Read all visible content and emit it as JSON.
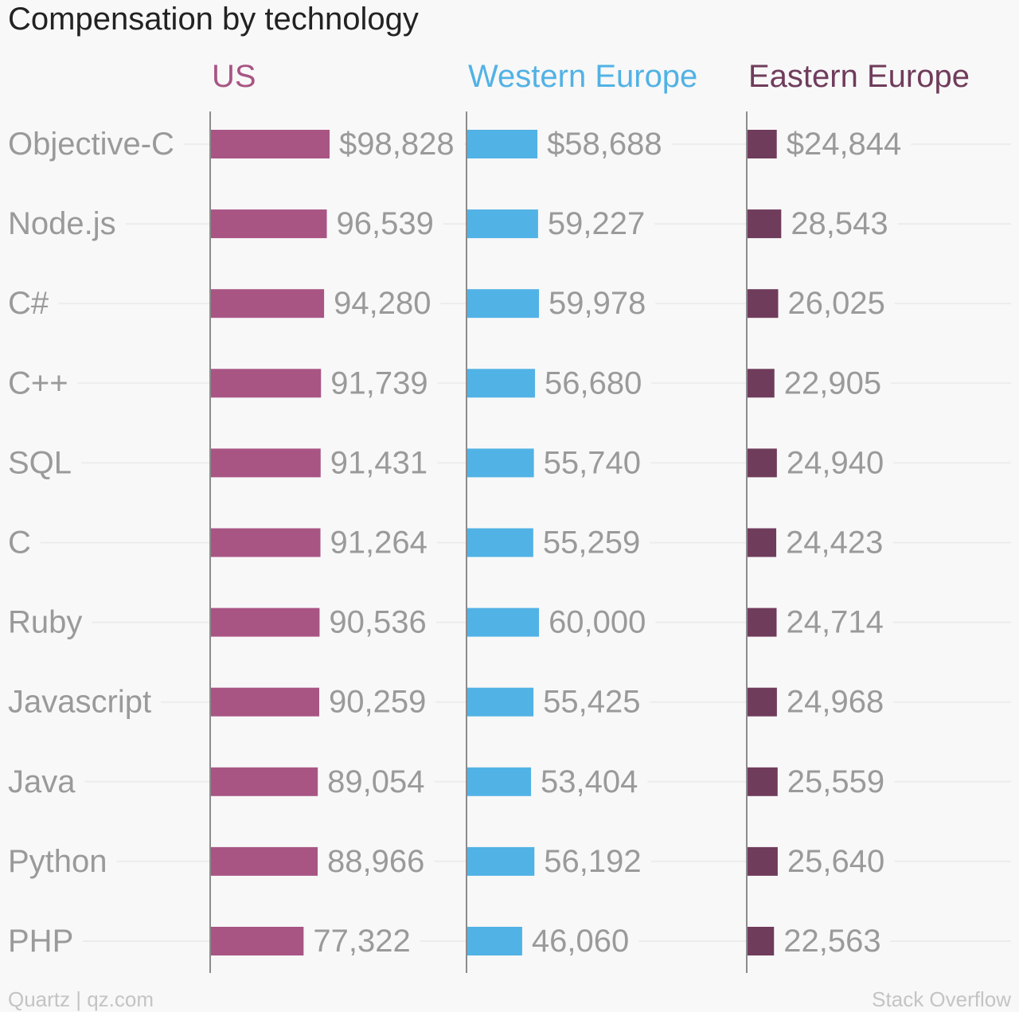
{
  "title": "Compensation by technology",
  "chart_data": {
    "type": "bar",
    "orientation": "horizontal",
    "categories": [
      "Objective-C",
      "Node.js",
      "C#",
      "C++",
      "SQL",
      "C",
      "Ruby",
      "Javascript",
      "Java",
      "Python",
      "PHP"
    ],
    "series": [
      {
        "name": "US",
        "color": "#a85584",
        "values": [
          98828,
          96539,
          94280,
          91739,
          91431,
          91264,
          90536,
          90259,
          89054,
          88966,
          77322
        ],
        "labels": [
          "$98,828",
          "96,539",
          "94,280",
          "91,739",
          "91,431",
          "91,264",
          "90,536",
          "90,259",
          "89,054",
          "88,966",
          "77,322"
        ]
      },
      {
        "name": "Western Europe",
        "color": "#51b2e5",
        "values": [
          58688,
          59227,
          59978,
          56680,
          55740,
          55259,
          60000,
          55425,
          53404,
          56192,
          46060
        ],
        "labels": [
          "$58,688",
          "59,227",
          "59,978",
          "56,680",
          "55,740",
          "55,259",
          "60,000",
          "55,425",
          "53,404",
          "56,192",
          "46,060"
        ]
      },
      {
        "name": "Eastern Europe",
        "color": "#703c5b",
        "values": [
          24844,
          28543,
          26025,
          22905,
          24940,
          24423,
          24714,
          24968,
          25559,
          25640,
          22563
        ],
        "labels": [
          "$24,844",
          "28,543",
          "26,025",
          "22,905",
          "24,940",
          "24,423",
          "24,714",
          "24,968",
          "25,559",
          "25,640",
          "22,563"
        ]
      }
    ],
    "legend": "column headers above each panel",
    "grid": true
  },
  "colors": {
    "label_text": "#9a9a9a",
    "axis": "#8c8c8c",
    "gridline": "#ececec"
  },
  "footer": {
    "source": "Quartz | qz.com",
    "credit": "Stack Overflow"
  }
}
